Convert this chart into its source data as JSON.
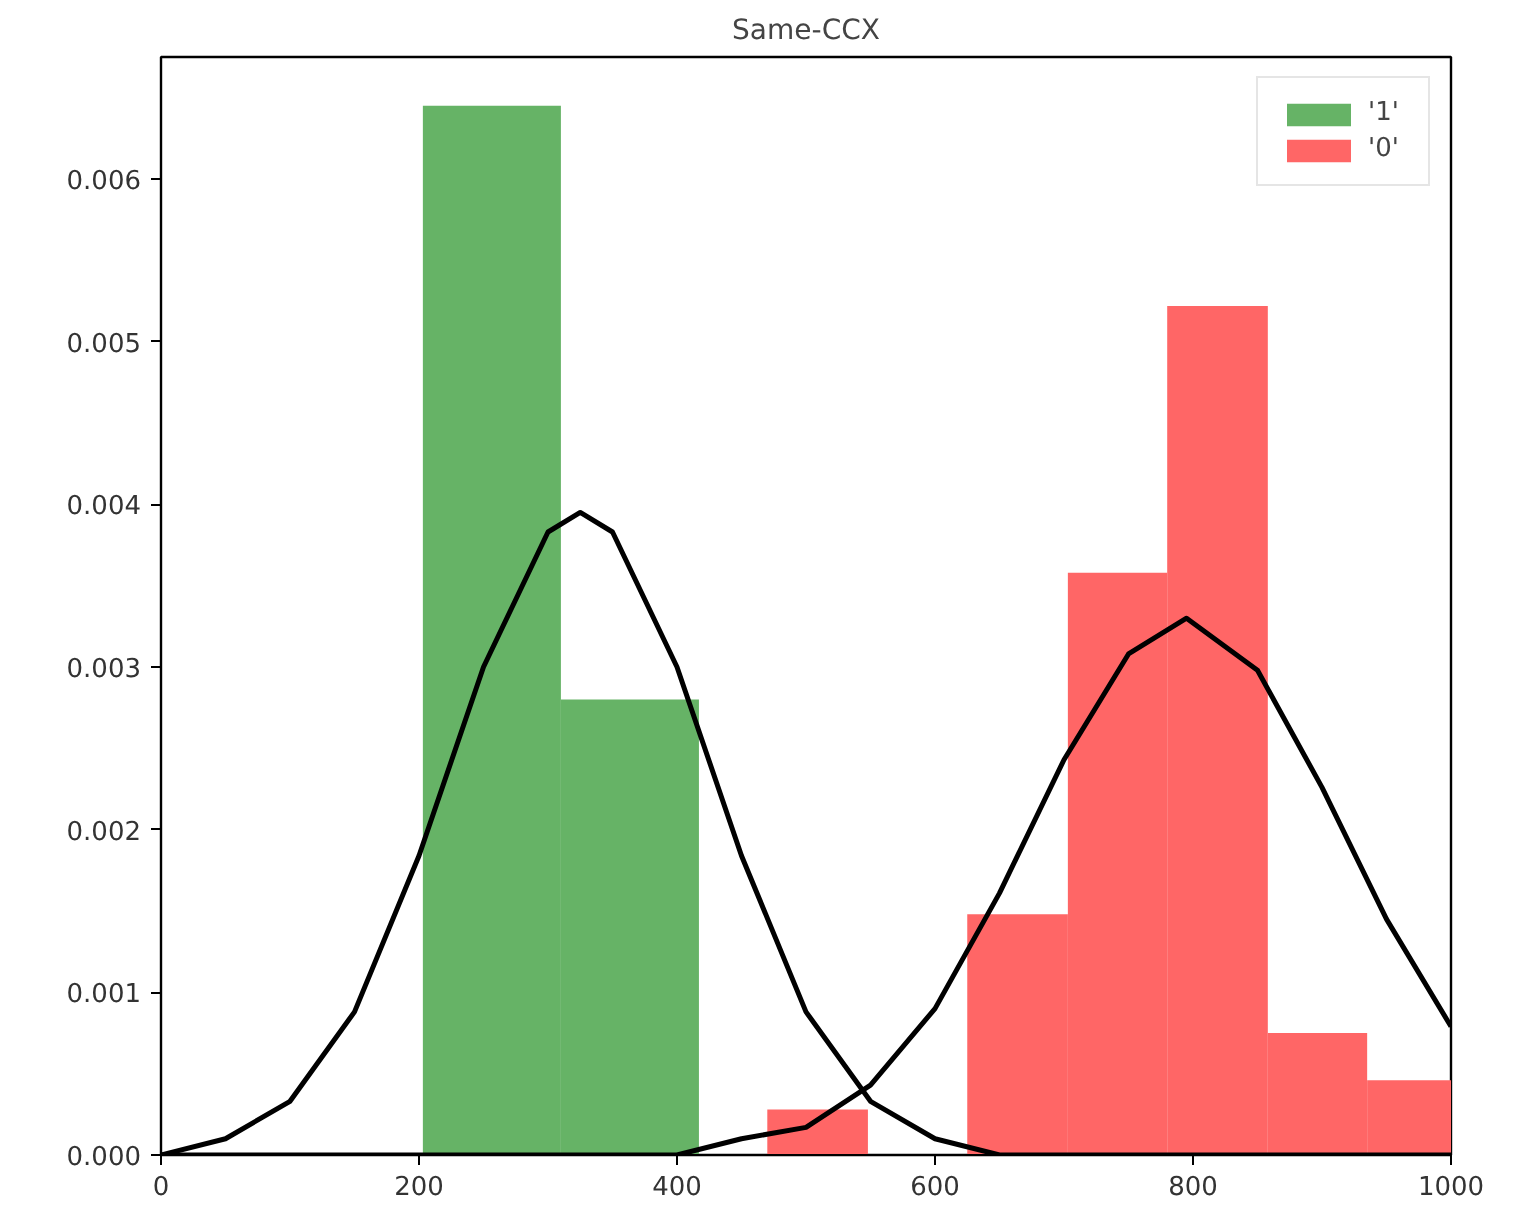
{
  "chart_data": {
    "type": "histogram",
    "title": "Same-CCX",
    "series": [
      {
        "name": "'1'",
        "color": "#66b366",
        "bins": [
          203,
          310,
          417
        ],
        "values": [
          0.00645,
          0.0028
        ]
      },
      {
        "name": "'0'",
        "color": "#ff6666",
        "bins": [
          470,
          548,
          625,
          703,
          780,
          858,
          935,
          1000
        ],
        "values": [
          0.00028,
          0.0,
          0.00148,
          0.00358,
          0.00522,
          0.00075,
          0.00046
        ]
      },
      {
        "type": "line",
        "color": "#000000",
        "x": [
          0,
          50,
          100,
          150,
          200,
          250,
          300,
          325,
          350,
          400,
          450,
          500,
          550,
          600,
          650,
          700,
          800,
          1000
        ],
        "values": [
          0.0,
          0.0001,
          0.00033,
          0.00088,
          0.00184,
          0.003,
          0.00383,
          0.00395,
          0.00383,
          0.003,
          0.00184,
          0.00088,
          0.00033,
          0.0001,
          0.0,
          0.0,
          0.0,
          0.0
        ]
      },
      {
        "type": "line",
        "color": "#000000",
        "x": [
          0,
          300,
          400,
          450,
          500,
          550,
          600,
          650,
          700,
          750,
          795,
          850,
          900,
          950,
          1000
        ],
        "values": [
          0.0,
          0.0,
          0.0,
          0.0001,
          0.00017,
          0.00043,
          0.0009,
          0.00161,
          0.00243,
          0.00308,
          0.0033,
          0.00298,
          0.00226,
          0.00145,
          0.00079
        ]
      }
    ],
    "xlim": [
      0,
      1000
    ],
    "xticks": [
      0,
      200,
      400,
      600,
      800,
      1000
    ],
    "ylim": [
      0,
      0.00675
    ],
    "yticks": [
      {
        "value": 0,
        "label": "0.000"
      },
      {
        "value": 0.001,
        "label": "0.001"
      },
      {
        "value": 0.002,
        "label": "0.002"
      },
      {
        "value": 0.003,
        "label": "0.003"
      },
      {
        "value": 0.004,
        "label": "0.004"
      },
      {
        "value": 0.005,
        "label": "0.005"
      },
      {
        "value": 0.006,
        "label": "0.006"
      }
    ],
    "legend": "top right",
    "grid": false
  }
}
